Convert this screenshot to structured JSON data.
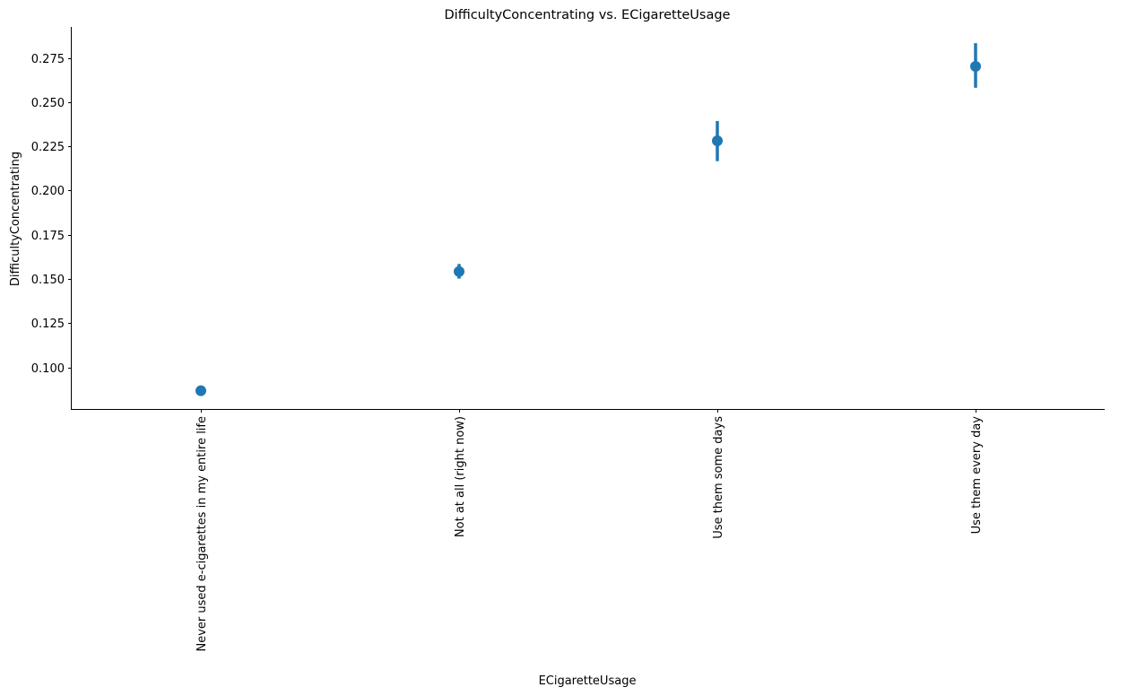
{
  "chart_data": {
    "type": "pointplot",
    "title": "DifficultyConcentrating vs. ECigaretteUsage",
    "xlabel": "ECigaretteUsage",
    "ylabel": "DifficultyConcentrating",
    "categories": [
      "Never used e-cigarettes in my entire life",
      "Not at all (right now)",
      "Use them some days",
      "Use them every day"
    ],
    "values": [
      0.0868,
      0.1542,
      0.2281,
      0.2702
    ],
    "ci_low": [
      0.0851,
      0.1502,
      0.2166,
      0.2581
    ],
    "ci_high": [
      0.0886,
      0.1585,
      0.2393,
      0.2833
    ],
    "ylim": [
      0.0765,
      0.2925
    ],
    "yticks": [
      0.1,
      0.125,
      0.15,
      0.175,
      0.2,
      0.225,
      0.25,
      0.275
    ],
    "ytick_labels": [
      "0.100",
      "0.125",
      "0.150",
      "0.175",
      "0.200",
      "0.225",
      "0.250",
      "0.275"
    ],
    "color": "#1f77b4",
    "grid": false
  }
}
